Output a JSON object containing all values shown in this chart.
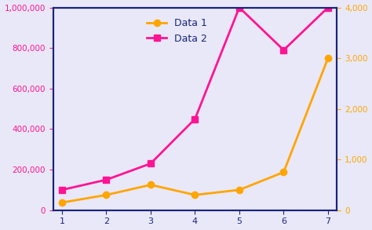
{
  "x": [
    1,
    2,
    3,
    4,
    5,
    6,
    7
  ],
  "data1": [
    150,
    300,
    500,
    300,
    400,
    750,
    3000
  ],
  "data2": [
    100000,
    150000,
    230000,
    450000,
    1000000,
    790000,
    1000000
  ],
  "data1_color": "#FFA500",
  "data2_color": "#FF1493",
  "left_axis_color": "#FF1493",
  "right_axis_color": "#FFA500",
  "spine_color": "#1a237e",
  "tick_color": "#1a237e",
  "label_color": "#1a237e",
  "legend_label1": "Data 1",
  "legend_label2": "Data 2",
  "left_ylim": [
    0,
    1000000
  ],
  "right_ylim": [
    0,
    4000
  ],
  "left_yticks": [
    0,
    200000,
    400000,
    600000,
    800000,
    1000000
  ],
  "right_yticks": [
    0,
    1000,
    2000,
    3000,
    4000
  ],
  "xlim": [
    0.8,
    7.2
  ],
  "xticks": [
    1,
    2,
    3,
    4,
    5,
    6,
    7
  ],
  "bg_color": "#e8e8f8",
  "marker1": "o",
  "marker2": "s",
  "linewidth": 2.0,
  "markersize": 6,
  "figsize": [
    4.74,
    2.93
  ],
  "dpi": 100
}
